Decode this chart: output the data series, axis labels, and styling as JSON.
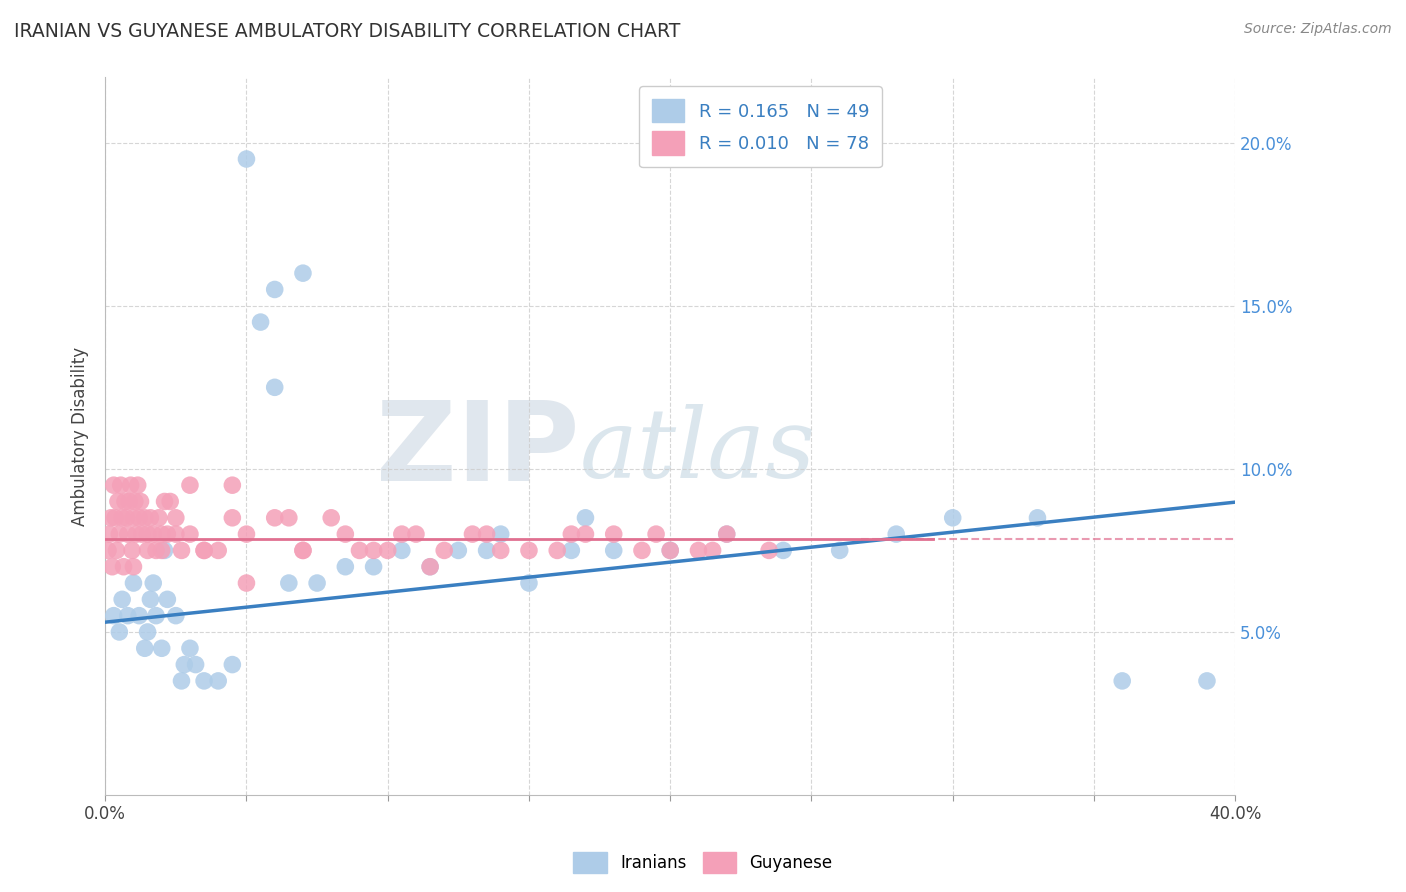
{
  "title": "IRANIAN VS GUYANESE AMBULATORY DISABILITY CORRELATION CHART",
  "source": "Source: ZipAtlas.com",
  "ylabel": "Ambulatory Disability",
  "background_color": "#ffffff",
  "grid_color": "#cccccc",
  "iranian_color": "#aecce8",
  "guyanese_color": "#f4a0b8",
  "iranian_line_color": "#3a7fc1",
  "guyanese_line_color": "#e07090",
  "R_iranian": 0.165,
  "N_iranian": 49,
  "R_guyanese": 0.01,
  "N_guyanese": 78,
  "legend_label_iranian": "Iranians",
  "legend_label_guyanese": "Guyanese",
  "watermark_zip": "ZIP",
  "watermark_atlas": "atlas",
  "iranians_x": [
    0.3,
    0.5,
    0.6,
    0.8,
    1.0,
    1.2,
    1.4,
    1.5,
    1.6,
    1.7,
    1.8,
    2.0,
    2.1,
    2.2,
    2.5,
    2.7,
    2.8,
    3.0,
    3.2,
    3.5,
    4.0,
    4.5,
    5.0,
    5.5,
    6.0,
    6.5,
    7.0,
    7.5,
    8.5,
    9.5,
    10.5,
    11.5,
    12.5,
    13.5,
    15.0,
    16.5,
    18.0,
    20.0,
    22.0,
    24.0,
    26.0,
    28.0,
    30.0,
    33.0,
    36.0,
    39.0,
    6.0,
    14.0,
    17.0
  ],
  "iranians_y": [
    5.5,
    5.0,
    6.0,
    5.5,
    6.5,
    5.5,
    4.5,
    5.0,
    6.0,
    6.5,
    5.5,
    4.5,
    7.5,
    6.0,
    5.5,
    3.5,
    4.0,
    4.5,
    4.0,
    3.5,
    3.5,
    4.0,
    19.5,
    14.5,
    12.5,
    6.5,
    16.0,
    6.5,
    7.0,
    7.0,
    7.5,
    7.0,
    7.5,
    7.5,
    6.5,
    7.5,
    7.5,
    7.5,
    8.0,
    7.5,
    7.5,
    8.0,
    8.5,
    8.5,
    3.5,
    3.5,
    15.5,
    8.0,
    8.5
  ],
  "guyanese_x": [
    0.1,
    0.15,
    0.2,
    0.25,
    0.3,
    0.35,
    0.4,
    0.45,
    0.5,
    0.55,
    0.6,
    0.65,
    0.7,
    0.75,
    0.8,
    0.85,
    0.9,
    0.95,
    1.0,
    1.05,
    1.1,
    1.15,
    1.2,
    1.25,
    1.3,
    1.4,
    1.5,
    1.6,
    1.7,
    1.8,
    1.9,
    2.0,
    2.1,
    2.2,
    2.3,
    2.5,
    2.7,
    3.0,
    3.5,
    4.0,
    4.5,
    5.0,
    6.0,
    7.0,
    8.0,
    9.0,
    10.0,
    11.0,
    12.0,
    13.0,
    14.0,
    15.0,
    16.0,
    17.0,
    18.0,
    19.0,
    20.0,
    21.0,
    22.0,
    3.0,
    4.5,
    6.5,
    8.5,
    10.5,
    1.0,
    1.5,
    2.0,
    2.5,
    3.5,
    5.0,
    7.0,
    9.5,
    11.5,
    13.5,
    16.5,
    19.5,
    21.5,
    23.5
  ],
  "guyanese_y": [
    7.5,
    8.0,
    8.5,
    7.0,
    9.5,
    8.5,
    7.5,
    9.0,
    8.0,
    9.5,
    8.5,
    7.0,
    9.0,
    8.5,
    8.0,
    9.0,
    9.5,
    7.5,
    8.5,
    9.0,
    8.0,
    9.5,
    8.5,
    9.0,
    8.0,
    8.5,
    7.5,
    8.5,
    8.0,
    7.5,
    8.5,
    8.0,
    9.0,
    8.0,
    9.0,
    8.5,
    7.5,
    8.0,
    7.5,
    7.5,
    8.5,
    6.5,
    8.5,
    7.5,
    8.5,
    7.5,
    7.5,
    8.0,
    7.5,
    8.0,
    7.5,
    7.5,
    7.5,
    8.0,
    8.0,
    7.5,
    7.5,
    7.5,
    8.0,
    9.5,
    9.5,
    8.5,
    8.0,
    8.0,
    7.0,
    8.0,
    7.5,
    8.0,
    7.5,
    8.0,
    7.5,
    7.5,
    7.0,
    8.0,
    8.0,
    8.0,
    7.5,
    7.5
  ],
  "xlim": [
    0,
    40
  ],
  "ylim": [
    0,
    22
  ],
  "yticks": [
    5,
    10,
    15,
    20
  ],
  "ytick_labels": [
    "5.0%",
    "10.0%",
    "15.0%",
    "20.0%"
  ]
}
